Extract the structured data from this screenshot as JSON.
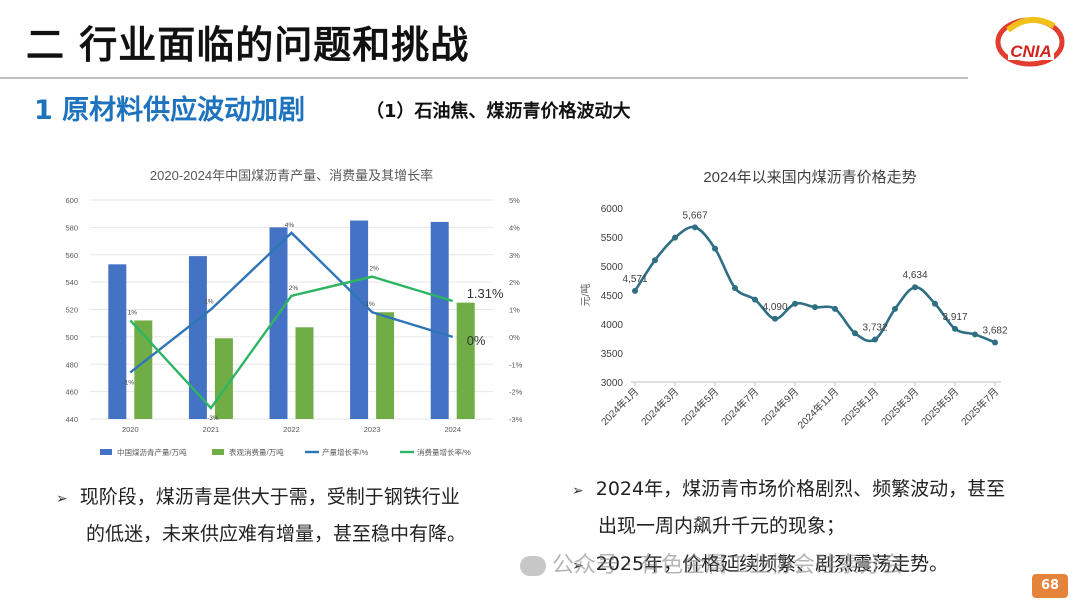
{
  "header": {
    "title": "二 行业面临的问题和挑战",
    "section": "1 原材料供应波动加剧",
    "subsection": "（1）石油焦、煤沥青价格波动大",
    "logo_text": "CNIA",
    "page_number": "68"
  },
  "colors": {
    "blue_bar": "#4472c4",
    "green_bar": "#70ad47",
    "line_blue": "#2e75b6",
    "line_green": "#2db562",
    "teal_line": "#2f6f84"
  },
  "left_bullet": {
    "lines": [
      "现阶段，煤沥青是供大于需，受制于钢铁行业",
      "的低迷，未来供应难有增量，甚至稳中有降。"
    ]
  },
  "right_bullets": [
    {
      "lines": [
        "2024年，煤沥青市场价格剧烈、频繁波动，甚至",
        "出现一周内飙升千元的现象；"
      ]
    },
    {
      "lines": [
        "2025年，价格延续频繁、剧烈震荡走势。"
      ]
    }
  ],
  "watermark": "公众号 · 有色金属工业协会硅素分会",
  "chart_data": [
    {
      "type": "bar",
      "title": "2020-2024年中国煤沥青产量、消费量及其增长率",
      "categories": [
        "2020",
        "2021",
        "2022",
        "2023",
        "2024"
      ],
      "ylim": [
        440,
        600
      ],
      "yticks": [
        "600",
        "580",
        "560",
        "540",
        "520",
        "500",
        "480",
        "460",
        "440"
      ],
      "y2lim": [
        -3,
        5
      ],
      "y2ticks": [
        "5%",
        "4%",
        "3%",
        "2%",
        "1%",
        "0%",
        "-1%",
        "-2%",
        "-3%"
      ],
      "series": [
        {
          "name": "中国煤沥青产量/万吨",
          "kind": "bar",
          "values": [
            553,
            559,
            580,
            585,
            584
          ]
        },
        {
          "name": "表观消费量/万吨",
          "kind": "bar",
          "values": [
            512,
            499,
            507,
            518,
            525
          ]
        },
        {
          "name": "产量增长率/%",
          "kind": "line",
          "values": [
            -1.3,
            1.0,
            3.8,
            0.9,
            0.0
          ],
          "labels": [
            "-1%",
            "1%",
            "4%",
            "1%",
            "0%"
          ]
        },
        {
          "name": "消费量增长率/%",
          "kind": "line",
          "values": [
            0.6,
            -2.6,
            1.5,
            2.2,
            1.31
          ],
          "labels": [
            "1%",
            "-3%",
            "2%",
            "2%",
            "1.31%"
          ]
        }
      ],
      "legend_position": "bottom"
    },
    {
      "type": "line",
      "title": "2024年以来国内煤沥青价格走势",
      "ylabel": "元/吨",
      "ylim": [
        3000,
        6000
      ],
      "yticks": [
        "6000",
        "5500",
        "5000",
        "4500",
        "4000",
        "3500",
        "3000"
      ],
      "xticks": [
        "2024年1月",
        "2024年3月",
        "2024年5月",
        "2024年7月",
        "2024年9月",
        "2024年11月",
        "2025年1月",
        "2025年3月",
        "2025年5月",
        "2025年7月"
      ],
      "x": [
        "2024-01",
        "2024-02",
        "2024-03",
        "2024-04",
        "2024-05",
        "2024-06",
        "2024-07",
        "2024-08",
        "2024-09",
        "2024-10",
        "2024-11",
        "2024-12",
        "2025-01",
        "2025-02",
        "2025-03",
        "2025-04",
        "2025-05",
        "2025-06",
        "2025-07"
      ],
      "values": [
        4571,
        5100,
        5490,
        5667,
        5300,
        4620,
        4420,
        4090,
        4350,
        4290,
        4260,
        3840,
        3732,
        4260,
        4634,
        4350,
        3917,
        3820,
        3682
      ],
      "point_labels": {
        "0": "4,571",
        "3": "5,667",
        "7": "4,090",
        "12": "3,732",
        "14": "4,634",
        "16": "3,917",
        "18": "3,682"
      },
      "grid": false
    }
  ]
}
